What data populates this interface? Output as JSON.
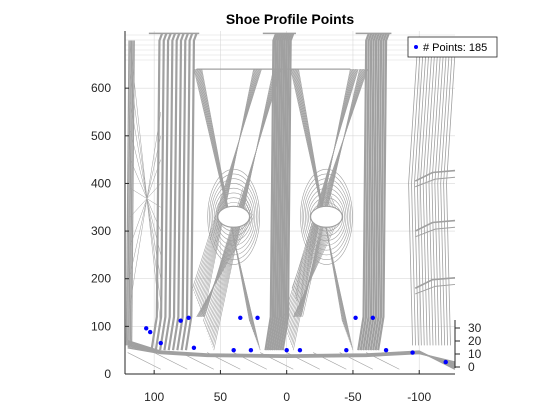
{
  "chart_data": {
    "type": "scatter",
    "projection": "3d",
    "title": "Shoe Profile Points",
    "legend": {
      "entries": [
        "# Points: 185"
      ],
      "placement": "top-right"
    },
    "xlabel": "",
    "ylabel": "",
    "zlabel": "",
    "x_ticks": [
      "100",
      "50",
      "0",
      "-50",
      "-100"
    ],
    "y_ticks": [
      "0",
      "100",
      "200",
      "300",
      "400",
      "500",
      "600"
    ],
    "z_ticks": [
      "0",
      "10",
      "20",
      "30"
    ],
    "x_range": [
      122,
      -127
    ],
    "y_range": [
      0,
      720
    ],
    "z_range": [
      0,
      35
    ],
    "grid": true,
    "colors": {
      "points": "#0000ff",
      "mesh": "#a0a0a0",
      "grid": "#d9d9d9",
      "axis": "#262626"
    },
    "visible_points": [
      {
        "x": 103,
        "y": 88
      },
      {
        "x": 106,
        "y": 96
      },
      {
        "x": 80,
        "y": 112
      },
      {
        "x": 74,
        "y": 118
      },
      {
        "x": 35,
        "y": 118
      },
      {
        "x": 22,
        "y": 118
      },
      {
        "x": -52,
        "y": 118
      },
      {
        "x": -65,
        "y": 118
      },
      {
        "x": 95,
        "y": 65
      },
      {
        "x": 70,
        "y": 55
      },
      {
        "x": 40,
        "y": 50
      },
      {
        "x": 27,
        "y": 50
      },
      {
        "x": 0,
        "y": 50
      },
      {
        "x": -10,
        "y": 50
      },
      {
        "x": -45,
        "y": 50
      },
      {
        "x": -75,
        "y": 50
      },
      {
        "x": -95,
        "y": 45
      },
      {
        "x": -120,
        "y": 25
      }
    ]
  }
}
